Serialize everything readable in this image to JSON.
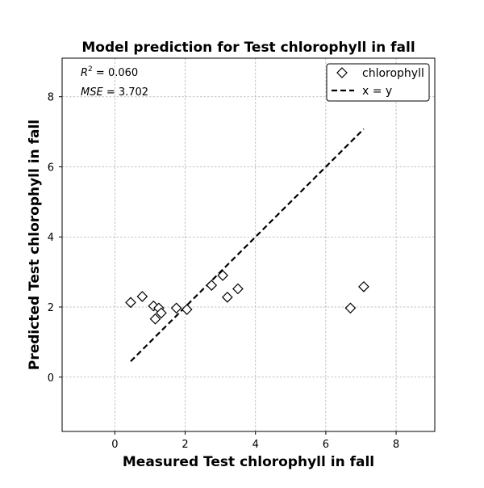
{
  "chart_data": {
    "type": "scatter",
    "title": "Model prediction for Test chlorophyll in fall",
    "xlabel": "Measured Test chlorophyll in fall",
    "ylabel": "Predicted Test chlorophyll in fall",
    "xlim": [
      -1.5,
      9.1
    ],
    "ylim": [
      -1.55,
      9.1
    ],
    "xticks": [
      0,
      2,
      4,
      6,
      8
    ],
    "yticks": [
      0,
      2,
      4,
      6,
      8
    ],
    "xtick_labels": [
      "0",
      "2",
      "4",
      "6",
      "8"
    ],
    "ytick_labels": [
      "0",
      "2",
      "4",
      "6",
      "8"
    ],
    "grid": true,
    "legend_position": "top-right",
    "annotations": {
      "r2_label": "R",
      "r2_sup": "2",
      "r2_value": " = 0.060",
      "mse_label": "MSE",
      "mse_value": " = 3.702"
    },
    "series": [
      {
        "name": "chlorophyll",
        "kind": "scatter",
        "marker": "diamond",
        "x": [
          0.45,
          0.78,
          1.1,
          1.15,
          1.25,
          1.32,
          1.75,
          2.05,
          2.75,
          3.07,
          3.2,
          3.5,
          6.7,
          7.08
        ],
        "y": [
          2.13,
          2.3,
          2.03,
          1.66,
          1.97,
          1.83,
          1.97,
          1.93,
          2.62,
          2.9,
          2.28,
          2.52,
          1.97,
          2.58
        ]
      },
      {
        "name": "x = y",
        "kind": "line",
        "style": "dashed",
        "x": [
          0.45,
          7.08
        ],
        "y": [
          0.45,
          7.08
        ]
      }
    ]
  }
}
